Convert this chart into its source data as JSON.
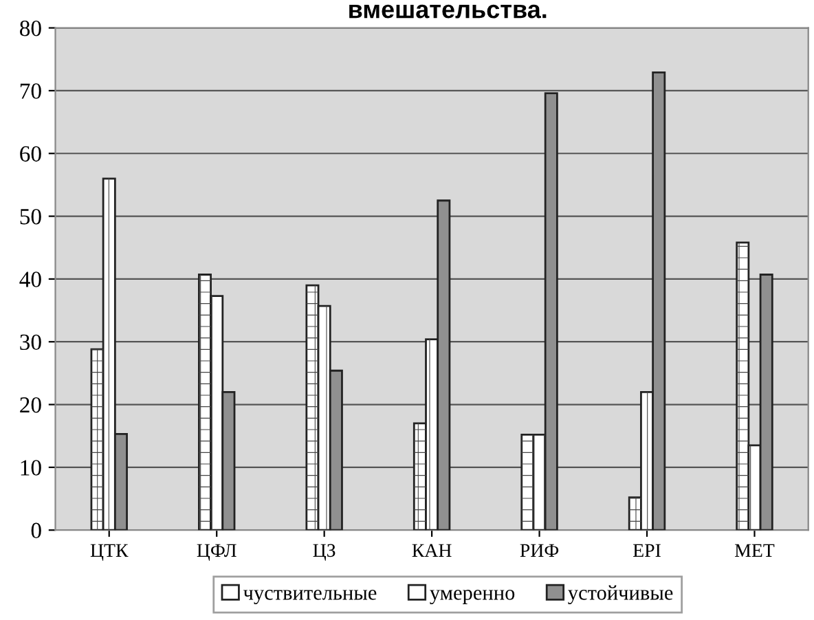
{
  "chart_data": {
    "type": "bar",
    "title": "вмешательства.",
    "categories": [
      "ЦТК",
      "ЦФЛ",
      "ЦЗ",
      "КАН",
      "РИФ",
      "EPI",
      "МЕТ"
    ],
    "series": [
      {
        "name": "чуствительные",
        "color": "#ffffff",
        "values": [
          28.8,
          40.7,
          39,
          17,
          15.2,
          5.2,
          45.8
        ]
      },
      {
        "name": "умеренно",
        "color": "#ffffff",
        "values": [
          56,
          37.3,
          35.7,
          30.4,
          15.2,
          22,
          13.5
        ]
      },
      {
        "name": "устойчивые",
        "color": "#909090",
        "values": [
          15.3,
          22,
          25.4,
          52.5,
          69.6,
          72.9,
          40.7
        ]
      }
    ],
    "ylim": [
      0,
      80
    ],
    "yticks": [
      0,
      10,
      20,
      30,
      40,
      50,
      60,
      70,
      80
    ],
    "grid": "y",
    "legend": "bottom"
  }
}
